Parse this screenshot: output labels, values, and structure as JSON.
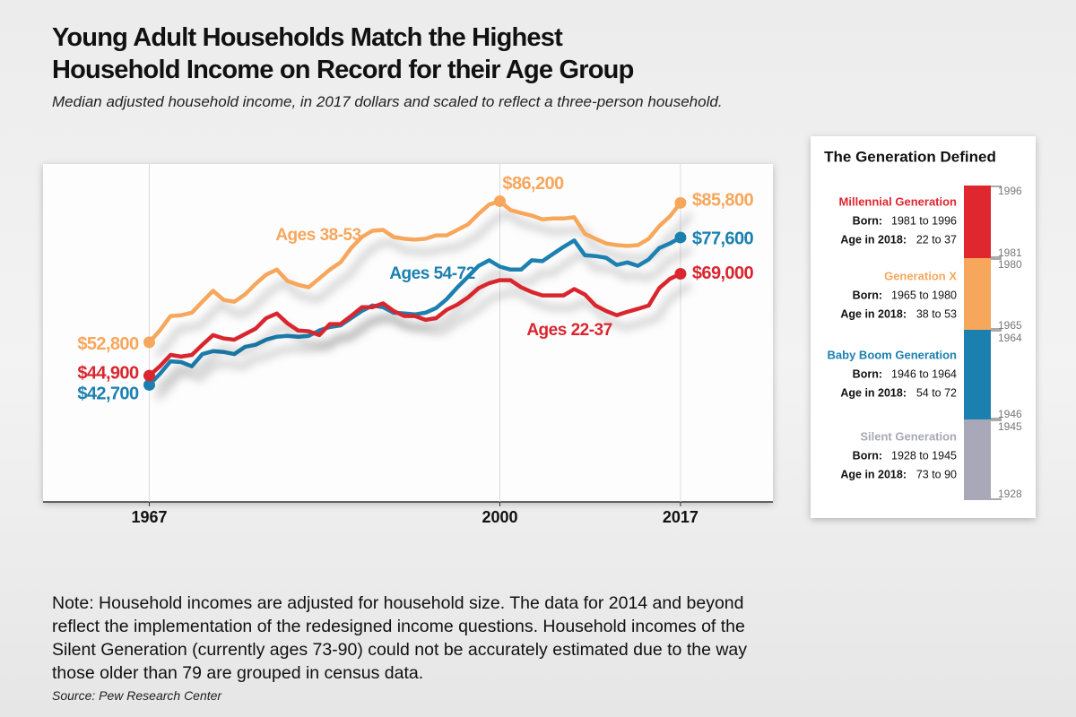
{
  "chart_data": {
    "type": "line",
    "title": [
      "Young Adult Households Match the Highest",
      "Household Income on Record for their Age Group"
    ],
    "subtitle": "Median adjusted household income, in 2017 dollars and scaled to reflect a three-person household.",
    "x": [
      1967,
      1968,
      1969,
      1970,
      1971,
      1972,
      1973,
      1974,
      1975,
      1976,
      1977,
      1978,
      1979,
      1980,
      1981,
      1982,
      1983,
      1984,
      1985,
      1986,
      1987,
      1988,
      1989,
      1990,
      1991,
      1992,
      1993,
      1994,
      1995,
      1996,
      1997,
      1998,
      1999,
      2000,
      2001,
      2002,
      2003,
      2004,
      2005,
      2006,
      2007,
      2008,
      2009,
      2010,
      2011,
      2012,
      2013,
      2014,
      2015,
      2016,
      2017
    ],
    "xlim": [
      1957,
      2025.7
    ],
    "xticks": [
      1967,
      2000,
      2017
    ],
    "ylim": [
      15000,
      95000
    ],
    "grid": "x",
    "series": [
      {
        "name": "Ages 38-53",
        "color": "#f7a75c",
        "values": [
          52800,
          55600,
          59000,
          59200,
          59800,
          62400,
          65000,
          62800,
          62400,
          64100,
          66600,
          68800,
          70000,
          67300,
          66400,
          65800,
          67900,
          70000,
          71700,
          75100,
          77700,
          79200,
          79400,
          77700,
          77300,
          77100,
          77300,
          78100,
          78100,
          79400,
          80700,
          83200,
          85400,
          86200,
          84100,
          83400,
          82800,
          81900,
          82100,
          82100,
          82400,
          78500,
          77300,
          76200,
          75800,
          75600,
          75800,
          77300,
          80300,
          82600,
          85800
        ],
        "value_labels": [
          "$52,800",
          null,
          null,
          null,
          null,
          null,
          null,
          null,
          null,
          null,
          null,
          null,
          null,
          null,
          null,
          null,
          null,
          null,
          null,
          null,
          null,
          null,
          null,
          null,
          null,
          null,
          null,
          null,
          null,
          null,
          null,
          null,
          null,
          "$86,200",
          null,
          null,
          null,
          null,
          null,
          null,
          null,
          null,
          null,
          null,
          null,
          null,
          null,
          null,
          null,
          null,
          "$85,800"
        ]
      },
      {
        "name": "Ages 54-72",
        "color": "#1b80b0",
        "values": [
          42700,
          45300,
          48300,
          48100,
          47100,
          50000,
          50700,
          50500,
          50000,
          51700,
          52200,
          53400,
          54100,
          54300,
          54100,
          54300,
          55600,
          56400,
          56800,
          58500,
          60200,
          61500,
          61100,
          59800,
          59600,
          59400,
          59800,
          60900,
          63000,
          65800,
          68300,
          70900,
          72200,
          70700,
          70000,
          70000,
          72200,
          72000,
          73700,
          75400,
          76900,
          73400,
          73200,
          72800,
          71100,
          71700,
          70900,
          72400,
          75100,
          76200,
          77600
        ],
        "value_labels": [
          "$42,700",
          null,
          null,
          null,
          null,
          null,
          null,
          null,
          null,
          null,
          null,
          null,
          null,
          null,
          null,
          null,
          null,
          null,
          null,
          null,
          null,
          null,
          null,
          null,
          null,
          null,
          null,
          null,
          null,
          null,
          null,
          null,
          null,
          null,
          null,
          null,
          null,
          null,
          null,
          null,
          null,
          null,
          null,
          null,
          null,
          null,
          null,
          null,
          null,
          null,
          "$77,600"
        ]
      },
      {
        "name": "Ages 22-37",
        "color": "#d9262f",
        "values": [
          44900,
          47100,
          49800,
          49400,
          49800,
          52200,
          54500,
          53700,
          53400,
          54700,
          56000,
          58500,
          59600,
          57300,
          55600,
          55400,
          54500,
          57100,
          57100,
          59000,
          61100,
          61100,
          62000,
          60200,
          59000,
          59000,
          58100,
          58500,
          60500,
          61700,
          63400,
          65600,
          66800,
          67500,
          67500,
          65800,
          64700,
          63900,
          63900,
          63900,
          65400,
          64100,
          61500,
          60200,
          59200,
          60000,
          60700,
          61500,
          65600,
          67800,
          69000
        ],
        "value_labels": [
          "$44,900",
          null,
          null,
          null,
          null,
          null,
          null,
          null,
          null,
          null,
          null,
          null,
          null,
          null,
          null,
          null,
          null,
          null,
          null,
          null,
          null,
          null,
          null,
          null,
          null,
          null,
          null,
          null,
          null,
          null,
          null,
          null,
          null,
          null,
          null,
          null,
          null,
          null,
          null,
          null,
          null,
          null,
          null,
          null,
          null,
          null,
          null,
          null,
          null,
          null,
          "$69,000"
        ]
      }
    ],
    "note": "Note: Household incomes are adjusted for household size. The data for 2014 and beyond reflect the implementation of the redesigned income questions. Household incomes of the Silent Generation (currently ages 73-90) could not be accurately estimated due to the way those older than 79 are grouped in census data.",
    "source": "Source: Pew Research Center"
  },
  "legend_panel": {
    "title": "The Generation Defined",
    "items": [
      {
        "name": "Millennial Generation",
        "color": "#e0262f",
        "born_label": "Born:",
        "born": "1981 to 1996",
        "age_label": "Age in 2018:",
        "age": "22 to 37",
        "end": 1996,
        "start": 1981
      },
      {
        "name": "Generation X",
        "color": "#f7a75c",
        "born_label": "Born:",
        "born": "1965 to 1980",
        "age_label": "Age in 2018:",
        "age": "38 to 53",
        "end": 1980,
        "start": 1965
      },
      {
        "name": "Baby Boom Generation",
        "color": "#1b80b0",
        "born_label": "Born:",
        "born": "1946 to 1964",
        "age_label": "Age in 2018:",
        "age": "54 to 72",
        "end": 1964,
        "start": 1946
      },
      {
        "name": "Silent Generation",
        "color": "#a9a8b8",
        "born_label": "Born:",
        "born": "1928 to 1945",
        "age_label": "Age in 2018:",
        "age": "73 to 90",
        "end": 1945,
        "start": 1928
      }
    ]
  }
}
